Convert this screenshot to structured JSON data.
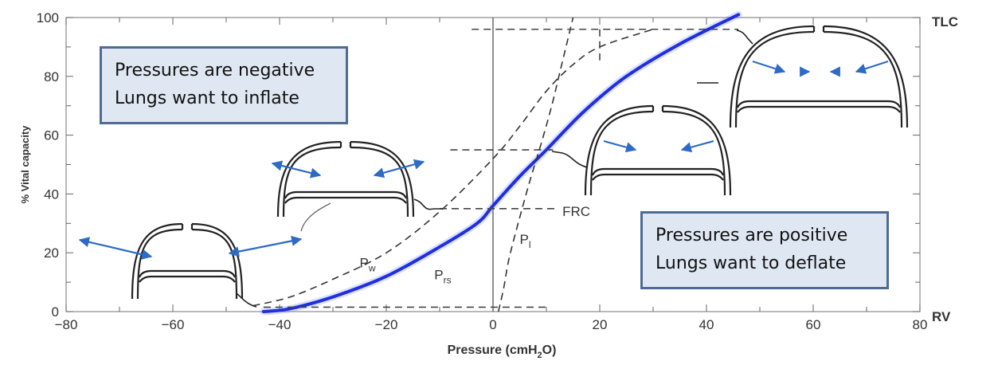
{
  "chart_data": {
    "type": "line",
    "xlabel_parts": {
      "base": "Pressure (cmH",
      "sub": "2",
      "tail": "O)"
    },
    "ylabel": "% Vital capacity",
    "xlim": [
      -80,
      80
    ],
    "ylim": [
      0,
      100
    ],
    "x_ticks": [
      "−80",
      "−60",
      "−40",
      "−20",
      "0",
      "20",
      "40",
      "60",
      "80"
    ],
    "y_ticks": [
      "0",
      "20",
      "40",
      "60",
      "80",
      "100"
    ],
    "right_labels": {
      "top": "TLC",
      "bottom": "RV"
    },
    "series": [
      {
        "name": "Prs",
        "label_base": "P",
        "label_sub": "rs",
        "style": "solid",
        "color": "#1f2fe0",
        "x": [
          -43,
          -38,
          -30,
          -20,
          -10,
          -3,
          0,
          5,
          10,
          17,
          25,
          35,
          46
        ],
        "y": [
          0,
          1,
          5,
          12,
          22,
          30,
          36,
          46,
          55,
          68,
          80,
          91,
          101
        ]
      },
      {
        "name": "Pw",
        "label_base": "P",
        "label_sub": "w",
        "style": "dashed",
        "color": "#333333",
        "x": [
          -45,
          -38,
          -30,
          -20,
          -10,
          0,
          5,
          10,
          15,
          20,
          30
        ],
        "y": [
          2,
          5,
          11,
          20,
          34,
          52,
          63,
          75,
          84,
          90,
          96
        ]
      },
      {
        "name": "Pl",
        "label_base": "P",
        "label_sub": "l",
        "style": "dashed",
        "color": "#333333",
        "x": [
          1,
          2,
          3,
          5,
          7,
          9,
          11,
          13,
          15
        ],
        "y": [
          0,
          8,
          18,
          32,
          45,
          57,
          70,
          85,
          100
        ]
      }
    ],
    "annotations": {
      "frc_label": "FRC",
      "frc_level": 35,
      "tlc_level": 96,
      "rv_level": 1.5,
      "frc_mark_level": 55
    },
    "callouts": {
      "negative": [
        "Pressures are negative",
        "Lungs want to inflate"
      ],
      "positive": [
        "Pressures are positive",
        "Lungs want to deflate"
      ]
    },
    "arrow_color": "#2d6bc4"
  }
}
